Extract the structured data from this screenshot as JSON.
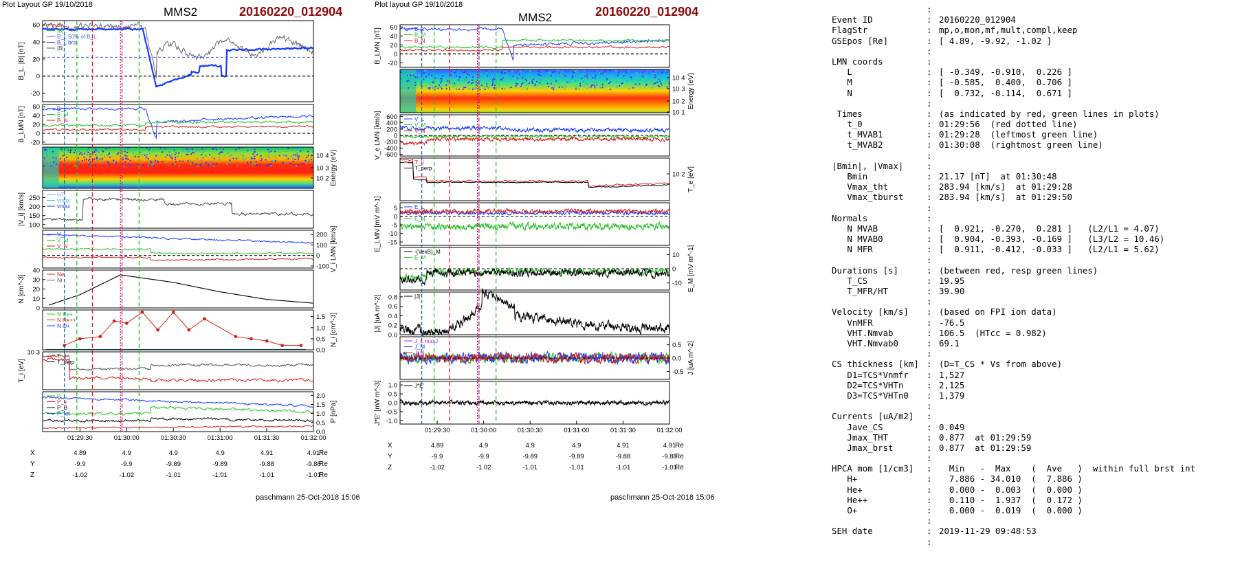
{
  "left_figure": {
    "header_left": "Plot Layout GP 19/10/2018",
    "title": "MMS2",
    "event": "20160220_012904",
    "footer": "paschmann 25-Oct-2018 15:06",
    "time_ticks": [
      "01:29:30",
      "01:30:00",
      "01:30:30",
      "01:31:00",
      "01:31:30",
      "01:32:00"
    ],
    "pos_rows": [
      {
        "label": "X",
        "values": [
          "4.89",
          "4.9",
          "4.9",
          "4.9",
          "4.91",
          "4.91"
        ],
        "unit": "Re"
      },
      {
        "label": "Y",
        "values": [
          "-9.9",
          "-9.9",
          "-9.89",
          "-9.89",
          "-9.88",
          "-9.88"
        ],
        "unit": "Re"
      },
      {
        "label": "Z",
        "values": [
          "-1.02",
          "-1.02",
          "-1.01",
          "-1.01",
          "-1.01",
          "-1.01"
        ],
        "unit": "Re"
      }
    ],
    "panels": [
      {
        "ylabel": "B_L, |B| [nT]",
        "side": "left",
        "ticks": [
          "60",
          "40",
          "20",
          "0",
          "-20"
        ],
        "legend": [
          "B_L",
          "|B|",
          "B_L 50% of B_L",
          "B_L brst",
          "|B|"
        ]
      },
      {
        "ylabel": "B_LMN [nT]",
        "side": "left",
        "ticks": [
          "60",
          "40",
          "20",
          "0",
          "-20"
        ],
        "legend": [
          "B_L",
          "B_M",
          "B_N"
        ]
      },
      {
        "ylabel": "Energy (eV)",
        "side": "right",
        "ticks": [
          "10^4",
          "10^3",
          "10^2"
        ],
        "legend": []
      },
      {
        "ylabel": "|V_i| [km/s]",
        "side": "left",
        "ticks": [
          "250",
          "200",
          "150",
          "100"
        ],
        "legend": [
          "HT",
          "vmax",
          "vmax"
        ]
      },
      {
        "ylabel": "V_i LMN [km/s]",
        "side": "right",
        "ticks": [
          "200",
          "100",
          "0",
          "-100"
        ],
        "legend": [
          "V_L",
          "V_M",
          "V_N"
        ]
      },
      {
        "ylabel": "N [cm^-3]",
        "side": "left",
        "ticks": [
          "40",
          "30",
          "20",
          "10",
          "0"
        ],
        "legend": [
          "Ne",
          "Ni"
        ]
      },
      {
        "ylabel": "N_i [cm^-3]",
        "side": "right",
        "ticks": [
          "1.5",
          "1.0",
          "0.5",
          "0.0"
        ],
        "legend": [
          "N He+",
          "N He++",
          "N O+"
        ]
      },
      {
        "ylabel": "T_i [eV]",
        "side": "left",
        "ticks": [
          "10^3"
        ],
        "legend": [
          "T_||",
          "T_perp"
        ]
      },
      {
        "ylabel": "P [nPa]",
        "side": "right",
        "ticks": [
          "2.0",
          "1.5",
          "1.0",
          "0.5",
          "0.0"
        ],
        "legend": [
          "P_i",
          "P_e",
          "P_B",
          "P_tot"
        ]
      }
    ]
  },
  "right_figure": {
    "header_left": "Plot layout GP 19/10/2018",
    "title": "MMS2",
    "event": "20160220_012904",
    "footer": "paschmann 25-Oct-2018 15:06",
    "time_ticks": [
      "01:29:30",
      "01:30:00",
      "01:30:30",
      "01:31:00",
      "01:31:30",
      "01:32:00"
    ],
    "pos_rows": [
      {
        "label": "X",
        "values": [
          "4.89",
          "4.9",
          "4.9",
          "4.9",
          "4.91",
          "4.91"
        ],
        "unit": "Re"
      },
      {
        "label": "Y",
        "values": [
          "-9.9",
          "-9.9",
          "-9.89",
          "-9.89",
          "-9.88",
          "-9.88"
        ],
        "unit": "Re"
      },
      {
        "label": "Z",
        "values": [
          "-1.02",
          "-1.02",
          "-1.01",
          "-1.01",
          "-1.01",
          "-1.01"
        ],
        "unit": "Re"
      }
    ],
    "panels": [
      {
        "ylabel": "B_LMN [nT]",
        "side": "left",
        "ticks": [
          "60",
          "40",
          "20",
          "0",
          "-20"
        ],
        "legend": [
          "B_L",
          "B_M",
          "B_N"
        ]
      },
      {
        "ylabel": "Energy (eV)",
        "side": "right",
        "ticks": [
          "10^4",
          "10^3",
          "10^2",
          "10^1"
        ],
        "legend": []
      },
      {
        "ylabel": "V_e LMN [km/s]",
        "side": "left",
        "ticks": [
          "600",
          "400",
          "200",
          "0",
          "-200",
          "-400",
          "-600"
        ],
        "legend": [
          "V_L",
          "V_M",
          "V_N"
        ]
      },
      {
        "ylabel": "T_e [eV]",
        "side": "right",
        "ticks": [
          "10^2"
        ],
        "legend": [
          "T_||",
          "T_perp"
        ]
      },
      {
        "ylabel": "E_LMN [mV m^-1]",
        "side": "left",
        "ticks": [
          "5",
          "0",
          "-5",
          "-10",
          "-15"
        ],
        "legend": [
          "E_L",
          "E_M",
          "E_N"
        ]
      },
      {
        "ylabel": "E_M [mV m^-1]",
        "side": "right",
        "ticks": [
          "10",
          "0",
          "-10"
        ],
        "legend": [
          "-(VexB)_M",
          "E_M"
        ]
      },
      {
        "ylabel": "|J| [uA m^-2]",
        "side": "left",
        "ticks": [
          "0.8",
          "0.6",
          "0.4",
          "0.2",
          "0.0"
        ],
        "legend": [
          "|J|"
        ]
      },
      {
        "ylabel": "J [uA m^-2]",
        "side": "right",
        "ticks": [
          "0.5",
          "0.0",
          "-0.5"
        ],
        "legend": [
          "J_L maxJ",
          "J_M",
          "J_N"
        ]
      },
      {
        "ylabel": "J*E' [nW m^-3]",
        "side": "left",
        "ticks": [
          "1.0",
          "0.5",
          "0.0",
          "-0.5",
          "-1.0"
        ],
        "legend": [
          "J*E'"
        ]
      }
    ]
  },
  "info": [
    {
      "k": "",
      "v": "",
      "sep": ":"
    },
    {
      "k": "Event ID",
      "v": "20160220_012904",
      "sep": ":"
    },
    {
      "k": "FlagStr",
      "v": "mp,o,mon,mf,mult,compl,keep",
      "sep": ":"
    },
    {
      "k": "GSEpos [Re]",
      "v": "[ 4.89, -9.92, -1.02 ]",
      "sep": ":"
    },
    {
      "k": "",
      "v": "",
      "sep": ":"
    },
    {
      "k": "LMN coords",
      "v": "",
      "sep": ":"
    },
    {
      "k": "   L",
      "v": "[ -0.349, -0.910,  0.226 ]",
      "sep": ":"
    },
    {
      "k": "   M",
      "v": "[ -0.585,  0.400,  0.706 ]",
      "sep": ":"
    },
    {
      "k": "   N",
      "v": "[  0.732, -0.114,  0.671 ]",
      "sep": ":"
    },
    {
      "k": "",
      "v": "",
      "sep": ":"
    },
    {
      "k": " Times",
      "v": "(as indicated by red, green lines in plots)",
      "sep": ":"
    },
    {
      "k": "   t_0",
      "v": "01:29:56  (red dotted line)",
      "sep": ":"
    },
    {
      "k": "   t_MVAB1",
      "v": "01:29:28  (leftmost green line)",
      "sep": ":"
    },
    {
      "k": "   t_MVAB2",
      "v": "01:30:08  (rightmost green line)",
      "sep": ":"
    },
    {
      "k": "",
      "v": "",
      "sep": ":"
    },
    {
      "k": "|Bmin|, |Vmax|",
      "v": "",
      "sep": ":"
    },
    {
      "k": "   Bmin",
      "v": "21.17 [nT]  at 01:30:48",
      "sep": ":"
    },
    {
      "k": "   Vmax_tht",
      "v": "283.94 [km/s]  at 01:29:28",
      "sep": ":"
    },
    {
      "k": "   Vmax_tburst",
      "v": "283.94 [km/s]  at 01:29:50",
      "sep": ":"
    },
    {
      "k": "",
      "v": "",
      "sep": ":"
    },
    {
      "k": "Normals",
      "v": "",
      "sep": ":"
    },
    {
      "k": "   N MVAB",
      "v": "[  0.921, -0.270,  0.281 ]   (L2/L1 = 4.07)",
      "sep": ":"
    },
    {
      "k": "   N MVAB0",
      "v": "[  0.904, -0.393, -0.169 ]   (L3/L2 = 10.46)",
      "sep": ":"
    },
    {
      "k": "   N MFR",
      "v": "[  0.911, -0.412, -0.033 ]   (L2/L1 = 5.62)",
      "sep": ":"
    },
    {
      "k": "",
      "v": "",
      "sep": ":"
    },
    {
      "k": "Durations [s]",
      "v": "(between red, resp green lines)",
      "sep": ":"
    },
    {
      "k": "   T_CS",
      "v": "19.95",
      "sep": ":"
    },
    {
      "k": "   T_MFR/HT",
      "v": "39.90",
      "sep": ":"
    },
    {
      "k": "",
      "v": "",
      "sep": ":"
    },
    {
      "k": "Velocity [km/s]",
      "v": "(based on FPI ion data)",
      "sep": ":"
    },
    {
      "k": "   VnMFR",
      "v": "-76.5",
      "sep": ":"
    },
    {
      "k": "   VHT.Nmvab",
      "v": "106.5  (HTcc = 0.982)",
      "sep": ":"
    },
    {
      "k": "   VHT.Nmvab0",
      "v": "69.1",
      "sep": ":"
    },
    {
      "k": "",
      "v": "",
      "sep": ":"
    },
    {
      "k": "CS thickness [km]",
      "v": "(D=T_CS * Vs from above)",
      "sep": ":"
    },
    {
      "k": "   D1=TCS*Vnmfr",
      "v": "1,527",
      "sep": ":"
    },
    {
      "k": "   D2=TCS*VHTn",
      "v": "2,125",
      "sep": ":"
    },
    {
      "k": "   D3=TCS*VHTn0",
      "v": "1,379",
      "sep": ":"
    },
    {
      "k": "",
      "v": "",
      "sep": ":"
    },
    {
      "k": "Currents [uA/m2]",
      "v": "",
      "sep": ":"
    },
    {
      "k": "   Jave_CS",
      "v": "0.049",
      "sep": ":"
    },
    {
      "k": "   Jmax_THT",
      "v": "0.877  at 01:29:59",
      "sep": ":"
    },
    {
      "k": "   Jmax_brst",
      "v": "0.877  at 01:29:59",
      "sep": ":"
    },
    {
      "k": "",
      "v": "",
      "sep": ":"
    },
    {
      "k": "HPCA mom [1/cm3]",
      "v": "  Min   -  Max    (  Ave   )  within full brst int",
      "sep": ":"
    },
    {
      "k": "   H+",
      "v": "  7.886 - 34.010  (  7.886 )",
      "sep": ":"
    },
    {
      "k": "   He+",
      "v": "  0.000 -  0.003  (  0.000 )",
      "sep": ":"
    },
    {
      "k": "   He++",
      "v": "  0.110 -  1.937  (  0.172 )",
      "sep": ":"
    },
    {
      "k": "   O+",
      "v": "  0.000 -  0.019  (  0.000 )",
      "sep": ":"
    },
    {
      "k": "",
      "v": "",
      "sep": ":"
    },
    {
      "k": "SEH date",
      "v": "2019-11-29 09:48:53",
      "sep": ":"
    },
    {
      "k": "",
      "v": "",
      "sep": ":"
    }
  ],
  "chart_data": [
    {
      "type": "line",
      "title": "MMS2 20160220_012904 (left stack)",
      "x_range": [
        "01:29:06",
        "01:32:00"
      ],
      "markers": {
        "t_0": "01:29:56",
        "t_MVAB1": "01:29:28",
        "t_MVAB2": "01:30:08"
      },
      "series": [
        {
          "panel": "N [cm^-3]",
          "name": "Ni",
          "x": [
            "01:29:10",
            "01:29:30",
            "01:29:56",
            "01:30:30",
            "01:31:00",
            "01:31:30",
            "01:32:00"
          ],
          "y": [
            3,
            14,
            35,
            27,
            17,
            9,
            5
          ]
        },
        {
          "panel": "N_i [cm^-3]",
          "name": "N He++",
          "x": [
            "01:29:20",
            "01:29:30",
            "01:29:43",
            "01:29:52",
            "01:30:00",
            "01:30:10",
            "01:30:20",
            "01:30:30",
            "01:30:40",
            "01:30:50",
            "01:31:10",
            "01:31:20",
            "01:31:30",
            "01:31:40",
            "01:31:52"
          ],
          "y": [
            0.2,
            0.5,
            0.6,
            1.3,
            1.2,
            1.7,
            0.9,
            1.7,
            0.9,
            1.4,
            0.6,
            0.5,
            0.4,
            0.2,
            0.2
          ]
        }
      ]
    },
    {
      "type": "line",
      "title": "MMS2 20160220_012904 (right stack)",
      "x_range": [
        "01:29:06",
        "01:32:00"
      ],
      "markers": {
        "t_0": "01:29:56",
        "t_MVAB1": "01:29:28",
        "t_MVAB2": "01:30:08"
      },
      "series": [
        {
          "panel": "|J| [uA m^-2]",
          "name": "|J|",
          "x": [
            "01:29:20",
            "01:29:40",
            "01:29:59",
            "01:30:20",
            "01:30:40",
            "01:31:00",
            "01:31:30",
            "01:32:00"
          ],
          "y": [
            0.05,
            0.15,
            0.877,
            0.4,
            0.3,
            0.2,
            0.15,
            0.1
          ]
        }
      ]
    }
  ]
}
